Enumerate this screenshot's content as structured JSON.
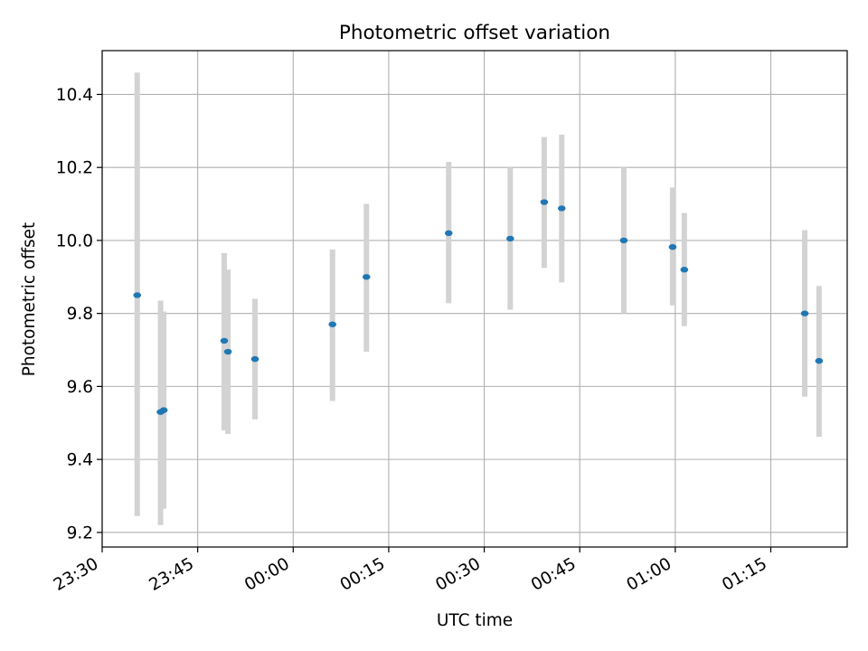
{
  "chart_data": {
    "type": "scatter",
    "title": "Photometric offset variation",
    "xlabel": "UTC time",
    "ylabel": "Photometric offset",
    "xlim": [
      "23:30",
      "01:27"
    ],
    "ylim": [
      9.16,
      10.52
    ],
    "x_ticks": [
      "23:30",
      "23:45",
      "00:00",
      "00:15",
      "00:30",
      "00:45",
      "01:00",
      "01:15"
    ],
    "y_ticks": [
      "9.2",
      "9.4",
      "9.6",
      "9.8",
      "10.0",
      "10.2",
      "10.4"
    ],
    "grid": true,
    "colors": {
      "point": "#1f77b4",
      "errorbar": "#d3d3d3",
      "grid": "#b0b0b0"
    },
    "series": [
      {
        "points": [
          {
            "x": "23:35:30",
            "y": 9.85,
            "err_low": 9.245,
            "err_high": 10.46
          },
          {
            "x": "23:39:10",
            "y": 9.53,
            "err_low": 9.22,
            "err_high": 9.835
          },
          {
            "x": "23:39:40",
            "y": 9.535,
            "err_low": 9.265,
            "err_high": 9.805
          },
          {
            "x": "23:49:10",
            "y": 9.725,
            "err_low": 9.48,
            "err_high": 9.965
          },
          {
            "x": "23:49:45",
            "y": 9.695,
            "err_low": 9.47,
            "err_high": 9.92
          },
          {
            "x": "23:54:00",
            "y": 9.675,
            "err_low": 9.51,
            "err_high": 9.84
          },
          {
            "x": "00:06:10",
            "y": 9.77,
            "err_low": 9.56,
            "err_high": 9.975
          },
          {
            "x": "00:11:30",
            "y": 9.9,
            "err_low": 9.695,
            "err_high": 10.1
          },
          {
            "x": "00:24:25",
            "y": 10.02,
            "err_low": 9.828,
            "err_high": 10.215
          },
          {
            "x": "00:34:05",
            "y": 10.005,
            "err_low": 9.81,
            "err_high": 10.2
          },
          {
            "x": "00:39:25",
            "y": 10.105,
            "err_low": 9.925,
            "err_high": 10.283
          },
          {
            "x": "00:42:10",
            "y": 10.088,
            "err_low": 9.885,
            "err_high": 10.29
          },
          {
            "x": "00:51:55",
            "y": 10.0,
            "err_low": 9.8,
            "err_high": 10.2
          },
          {
            "x": "00:59:35",
            "y": 9.982,
            "err_low": 9.822,
            "err_high": 10.145
          },
          {
            "x": "01:01:25",
            "y": 9.92,
            "err_low": 9.765,
            "err_high": 10.075
          },
          {
            "x": "01:20:20",
            "y": 9.8,
            "err_low": 9.572,
            "err_high": 10.028
          },
          {
            "x": "01:22:35",
            "y": 9.67,
            "err_low": 9.462,
            "err_high": 9.875
          }
        ]
      }
    ]
  }
}
